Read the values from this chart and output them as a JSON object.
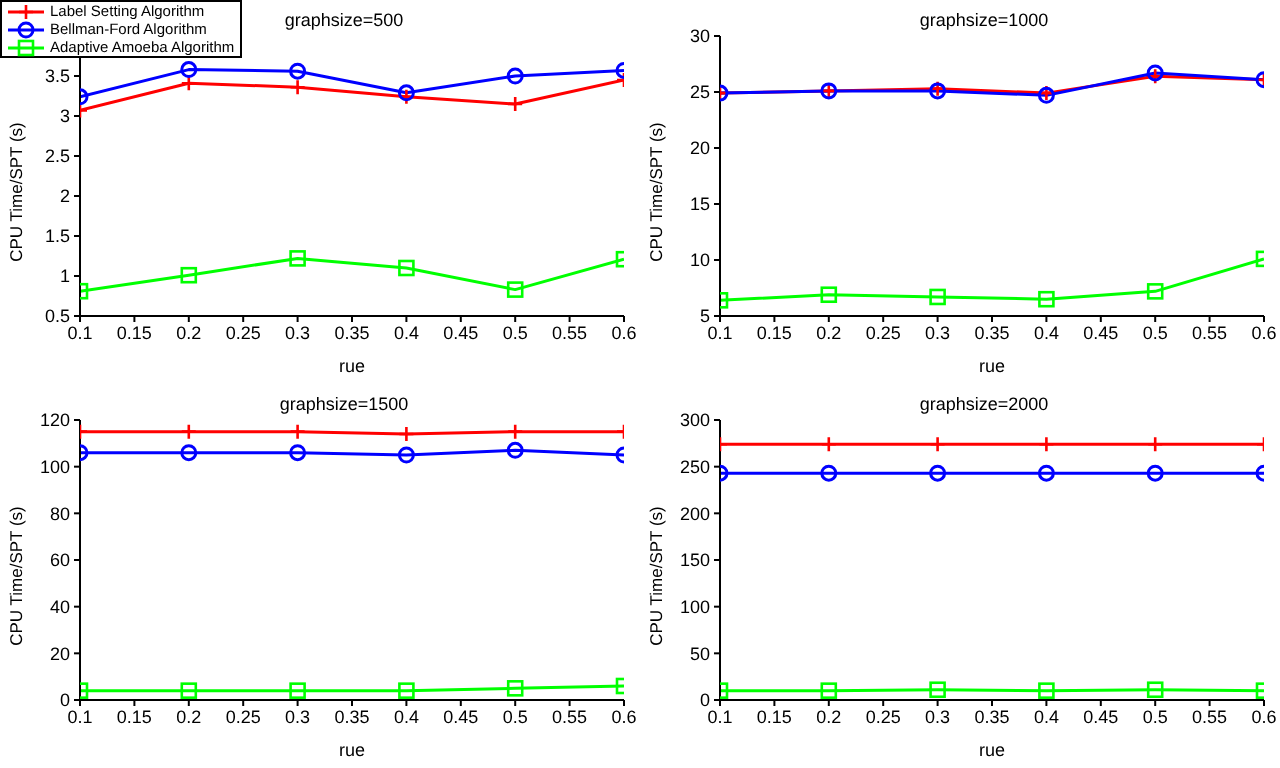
{
  "chart_data": [
    {
      "type": "line",
      "title": "graphsize=500",
      "xlabel": "rue",
      "ylabel": "CPU Time/SPT (s)",
      "x": [
        0.1,
        0.2,
        0.3,
        0.4,
        0.5,
        0.6
      ],
      "xlim": [
        0.1,
        0.6
      ],
      "xticks": [
        0.1,
        0.15,
        0.2,
        0.25,
        0.3,
        0.35,
        0.4,
        0.45,
        0.5,
        0.55,
        0.6
      ],
      "ylim": [
        0.5,
        4
      ],
      "yticks": [
        0.5,
        1,
        1.5,
        2,
        2.5,
        3,
        3.5
      ],
      "grid": false,
      "legend": "top left",
      "series": [
        {
          "name": "Label Setting Algorithm",
          "color": "#ff0000",
          "marker": "cross",
          "values": [
            3.07,
            3.41,
            3.36,
            3.24,
            3.15,
            3.45
          ]
        },
        {
          "name": "Bellman-Ford Algorithm",
          "color": "#0000ff",
          "marker": "circle",
          "values": [
            3.24,
            3.58,
            3.56,
            3.29,
            3.5,
            3.57
          ]
        },
        {
          "name": "Adaptive Amoeba Algorithm",
          "color": "#00ff00",
          "marker": "square",
          "values": [
            0.81,
            1.01,
            1.22,
            1.1,
            0.83,
            1.21
          ]
        }
      ]
    },
    {
      "type": "line",
      "title": "graphsize=1000",
      "xlabel": "rue",
      "ylabel": "CPU Time/SPT (s)",
      "x": [
        0.1,
        0.2,
        0.3,
        0.4,
        0.5,
        0.6
      ],
      "xlim": [
        0.1,
        0.6
      ],
      "xticks": [
        0.1,
        0.15,
        0.2,
        0.25,
        0.3,
        0.35,
        0.4,
        0.45,
        0.5,
        0.55,
        0.6
      ],
      "ylim": [
        5,
        30
      ],
      "yticks": [
        5,
        10,
        15,
        20,
        25,
        30
      ],
      "grid": false,
      "series": [
        {
          "color": "#ff0000",
          "marker": "cross",
          "values": [
            24.9,
            25.1,
            25.3,
            24.9,
            26.4,
            26.1
          ]
        },
        {
          "color": "#0000ff",
          "marker": "circle",
          "values": [
            24.9,
            25.1,
            25.1,
            24.7,
            26.7,
            26.1
          ]
        },
        {
          "color": "#00ff00",
          "marker": "square",
          "values": [
            6.4,
            6.9,
            6.7,
            6.5,
            7.2,
            10.1
          ]
        }
      ]
    },
    {
      "type": "line",
      "title": "graphsize=1500",
      "xlabel": "rue",
      "ylabel": "CPU Time/SPT (s)",
      "x": [
        0.1,
        0.2,
        0.3,
        0.4,
        0.5,
        0.6
      ],
      "xlim": [
        0.1,
        0.6
      ],
      "xticks": [
        0.1,
        0.15,
        0.2,
        0.25,
        0.3,
        0.35,
        0.4,
        0.45,
        0.5,
        0.55,
        0.6
      ],
      "ylim": [
        0,
        120
      ],
      "yticks": [
        0,
        20,
        40,
        60,
        80,
        100,
        120
      ],
      "grid": false,
      "series": [
        {
          "color": "#ff0000",
          "marker": "cross",
          "values": [
            115,
            115,
            115,
            114,
            115,
            115
          ]
        },
        {
          "color": "#0000ff",
          "marker": "circle",
          "values": [
            106,
            106,
            106,
            105,
            107,
            105
          ]
        },
        {
          "color": "#00ff00",
          "marker": "square",
          "values": [
            4,
            4,
            4,
            4,
            5,
            6
          ]
        }
      ]
    },
    {
      "type": "line",
      "title": "graphsize=2000",
      "xlabel": "rue",
      "ylabel": "CPU Time/SPT (s)",
      "x": [
        0.1,
        0.2,
        0.3,
        0.4,
        0.5,
        0.6
      ],
      "xlim": [
        0.1,
        0.6
      ],
      "xticks": [
        0.1,
        0.15,
        0.2,
        0.25,
        0.3,
        0.35,
        0.4,
        0.45,
        0.5,
        0.55,
        0.6
      ],
      "ylim": [
        0,
        300
      ],
      "yticks": [
        0,
        50,
        100,
        150,
        200,
        250,
        300
      ],
      "grid": false,
      "series": [
        {
          "color": "#ff0000",
          "marker": "cross",
          "values": [
            274,
            274,
            274,
            274,
            274,
            274
          ]
        },
        {
          "color": "#0000ff",
          "marker": "circle",
          "values": [
            243,
            243,
            243,
            243,
            243,
            243
          ]
        },
        {
          "color": "#00ff00",
          "marker": "square",
          "values": [
            10,
            10,
            11,
            10,
            11,
            10
          ]
        }
      ]
    }
  ]
}
